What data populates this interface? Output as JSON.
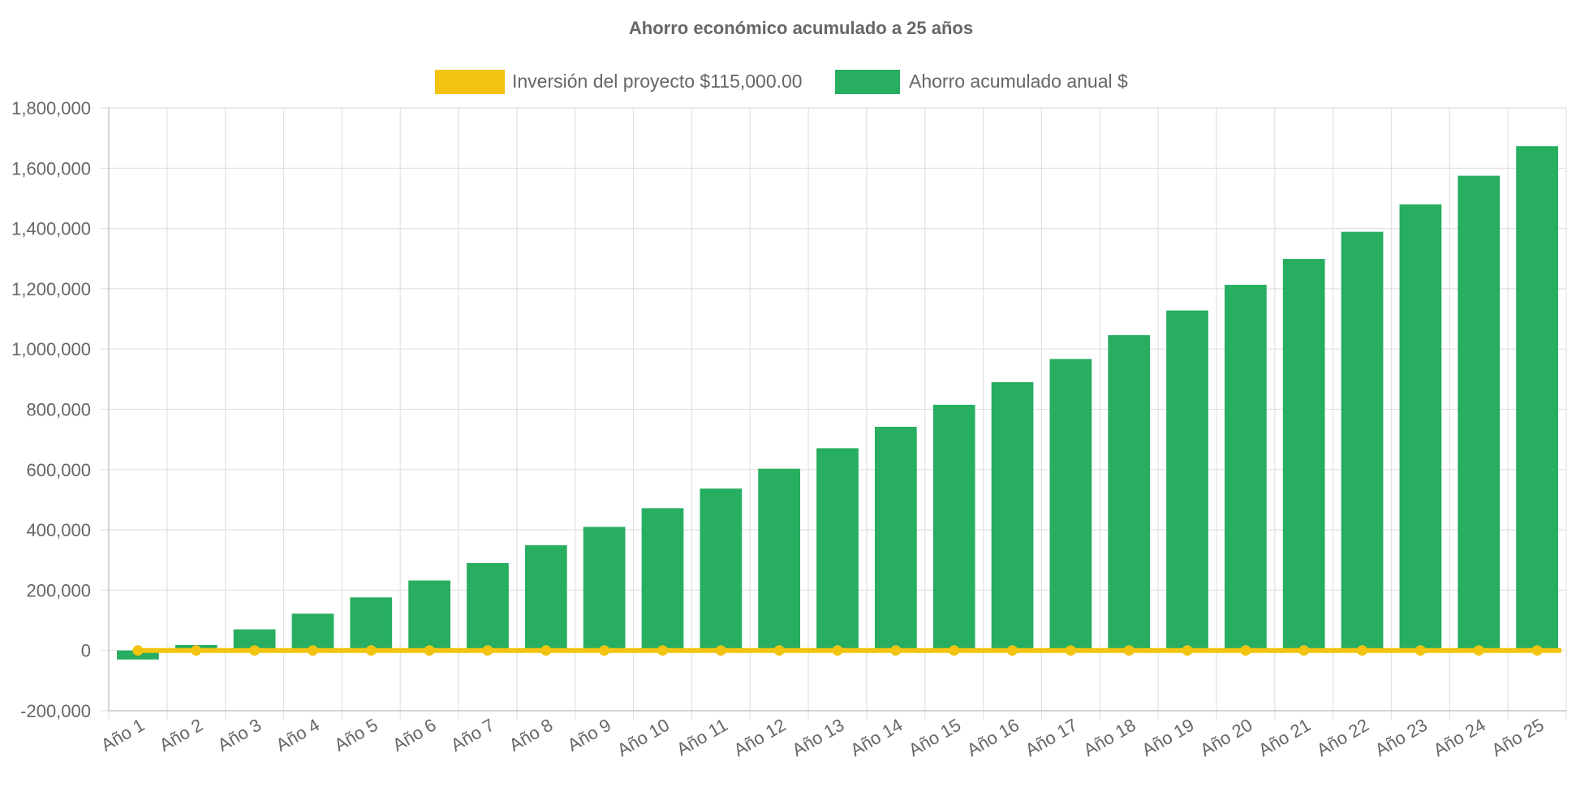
{
  "chart_data": {
    "type": "bar",
    "title": "Ahorro económico acumulado a 25 años",
    "categories": [
      "Año 1",
      "Año 2",
      "Año 3",
      "Año 4",
      "Año 5",
      "Año 6",
      "Año 7",
      "Año 8",
      "Año 9",
      "Año 10",
      "Año 11",
      "Año 12",
      "Año 13",
      "Año 14",
      "Año 15",
      "Año 16",
      "Año 17",
      "Año 18",
      "Año 19",
      "Año 20",
      "Año 21",
      "Año 22",
      "Año 23",
      "Año 24",
      "Año 25"
    ],
    "series": [
      {
        "name": "Inversión del proyecto $115,000.00",
        "type": "line",
        "color": "#f2c40f",
        "values": [
          0,
          0,
          0,
          0,
          0,
          0,
          0,
          0,
          0,
          0,
          0,
          0,
          0,
          0,
          0,
          0,
          0,
          0,
          0,
          0,
          0,
          0,
          0,
          0,
          0
        ]
      },
      {
        "name": "Ahorro acumulado anual $",
        "type": "bar",
        "color": "#27ae60",
        "values": [
          -30000,
          18000,
          70000,
          122000,
          176000,
          232000,
          290000,
          349000,
          410000,
          472000,
          537000,
          603000,
          671000,
          742000,
          815000,
          890000,
          967000,
          1046000,
          1128000,
          1213000,
          1299000,
          1389000,
          1480000,
          1575000,
          1673000
        ]
      }
    ],
    "yticks": [
      "1,800,000",
      "1,600,000",
      "1,400,000",
      "1,200,000",
      "1,000,000",
      "800,000",
      "600,000",
      "400,000",
      "200,000",
      "0",
      "-200,000"
    ],
    "ylim": [
      -200000,
      1800000
    ],
    "ytick_step": 200000,
    "grid": true,
    "legend_position": "top"
  }
}
